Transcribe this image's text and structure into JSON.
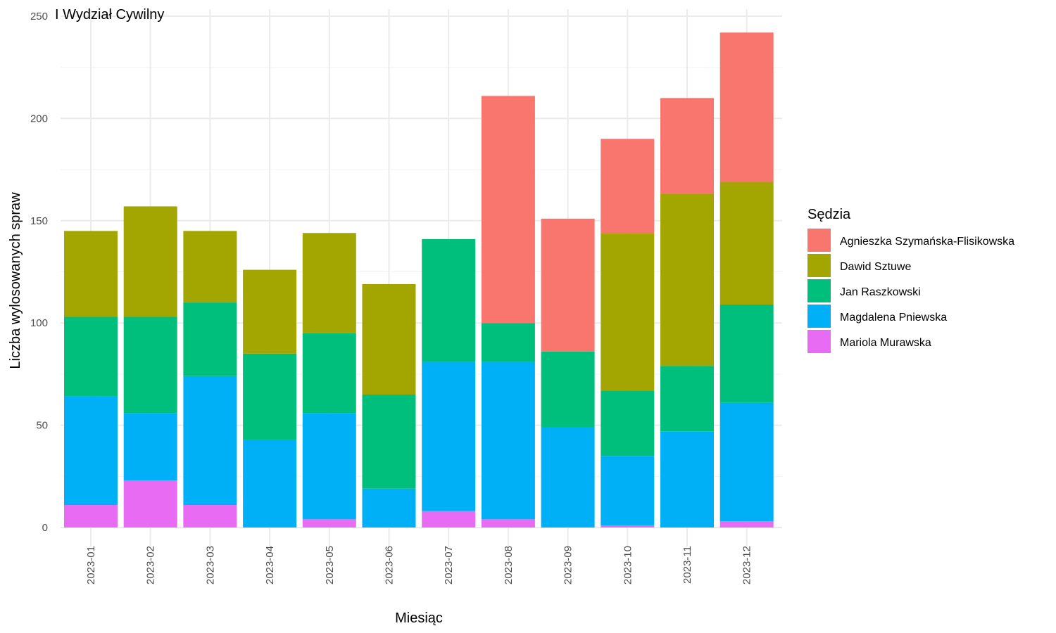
{
  "chart_data": {
    "type": "bar",
    "stacked": true,
    "title": "I Wydział Cywilny",
    "xlabel": "Miesiąc",
    "ylabel": "Liczba wylosowanych spraw",
    "ylim": [
      0,
      250
    ],
    "yticks": [
      0,
      50,
      100,
      150,
      200,
      250
    ],
    "grid": true,
    "legend_title": "Sędzia",
    "legend_position": "right",
    "categories": [
      "2023-01",
      "2023-02",
      "2023-03",
      "2023-04",
      "2023-05",
      "2023-06",
      "2023-07",
      "2023-08",
      "2023-09",
      "2023-10",
      "2023-11",
      "2023-12"
    ],
    "series": [
      {
        "name": "Agnieszka Szymańska-Flisikowska",
        "color": "#F8766D",
        "values": [
          0,
          0,
          0,
          0,
          0,
          0,
          0,
          111,
          65,
          46,
          47,
          73
        ]
      },
      {
        "name": "Dawid Sztuwe",
        "color": "#A3A500",
        "values": [
          42,
          54,
          35,
          41,
          49,
          54,
          0,
          0,
          0,
          77,
          84,
          60
        ]
      },
      {
        "name": "Jan Raszkowski",
        "color": "#00BF7D",
        "values": [
          39,
          47,
          36,
          42,
          39,
          46,
          60,
          19,
          37,
          32,
          32,
          48
        ]
      },
      {
        "name": "Magdalena Pniewska",
        "color": "#00B0F6",
        "values": [
          53,
          33,
          63,
          43,
          52,
          19,
          73,
          77,
          49,
          34,
          47,
          58
        ]
      },
      {
        "name": "Mariola Murawska",
        "color": "#E76BF3",
        "values": [
          11,
          23,
          11,
          0,
          4,
          0,
          8,
          4,
          0,
          1,
          0,
          3
        ]
      }
    ]
  }
}
